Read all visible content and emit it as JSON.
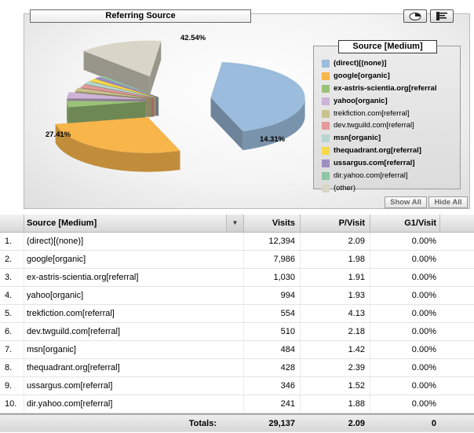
{
  "chart": {
    "title": "Referring Source",
    "legend_title": "Source [Medium]",
    "show_all_label": "Show All",
    "hide_all_label": "Hide All",
    "pct_labels": {
      "direct": "42.54%",
      "google": "27.41%",
      "other": "14.31%"
    }
  },
  "chart_data": {
    "type": "pie",
    "title": "Referring Source",
    "slices": [
      {
        "label": "(direct)[(none)]",
        "pct": 42.54,
        "color": "#9bbcdc",
        "bold": true
      },
      {
        "label": "google[organic]",
        "pct": 27.41,
        "color": "#f7b54a",
        "bold": true
      },
      {
        "label": "ex-astris-scientia.org[referral",
        "pct": 3.54,
        "color": "#9bc27a",
        "bold": true
      },
      {
        "label": "yahoo[organic]",
        "pct": 3.41,
        "color": "#cdb3d6",
        "bold": true
      },
      {
        "label": "trekfiction.com[referral]",
        "pct": 1.9,
        "color": "#c9c28f",
        "bold": false
      },
      {
        "label": "dev.twguild.com[referral]",
        "pct": 1.75,
        "color": "#e39a98",
        "bold": false
      },
      {
        "label": "msn[organic]",
        "pct": 1.66,
        "color": "#b7d5cf",
        "bold": true
      },
      {
        "label": "thequadrant.org[referral]",
        "pct": 1.47,
        "color": "#f5d94e",
        "bold": true
      },
      {
        "label": "ussargus.com[referral]",
        "pct": 1.19,
        "color": "#9e8ec2",
        "bold": true
      },
      {
        "label": "dir.yahoo.com[referral]",
        "pct": 0.83,
        "color": "#8fc7a4",
        "bold": false
      },
      {
        "label": "(other)",
        "pct": 14.31,
        "color": "#d9d5c7",
        "bold": false
      }
    ]
  },
  "table": {
    "headers": {
      "source": "Source [Medium]",
      "visits": "Visits",
      "pvisit": "P/Visit",
      "g1": "G1/Visit"
    },
    "rows": [
      {
        "n": "1.",
        "source": "(direct)[(none)]",
        "visits": "12,394",
        "pvisit": "2.09",
        "g1": "0.00%"
      },
      {
        "n": "2.",
        "source": "google[organic]",
        "visits": "7,986",
        "pvisit": "1.98",
        "g1": "0.00%"
      },
      {
        "n": "3.",
        "source": "ex-astris-scientia.org[referral]",
        "visits": "1,030",
        "pvisit": "1.91",
        "g1": "0.00%"
      },
      {
        "n": "4.",
        "source": "yahoo[organic]",
        "visits": "994",
        "pvisit": "1.93",
        "g1": "0.00%"
      },
      {
        "n": "5.",
        "source": "trekfiction.com[referral]",
        "visits": "554",
        "pvisit": "4.13",
        "g1": "0.00%"
      },
      {
        "n": "6.",
        "source": "dev.twguild.com[referral]",
        "visits": "510",
        "pvisit": "2.18",
        "g1": "0.00%"
      },
      {
        "n": "7.",
        "source": "msn[organic]",
        "visits": "484",
        "pvisit": "1.42",
        "g1": "0.00%"
      },
      {
        "n": "8.",
        "source": "thequadrant.org[referral]",
        "visits": "428",
        "pvisit": "2.39",
        "g1": "0.00%"
      },
      {
        "n": "9.",
        "source": "ussargus.com[referral]",
        "visits": "346",
        "pvisit": "1.52",
        "g1": "0.00%"
      },
      {
        "n": "10.",
        "source": "dir.yahoo.com[referral]",
        "visits": "241",
        "pvisit": "1.88",
        "g1": "0.00%"
      }
    ],
    "totals": {
      "label": "Totals:",
      "visits": "29,137",
      "pvisit": "2.09",
      "g1": "0"
    }
  },
  "icons": {
    "pie_button": "pie-chart-icon",
    "bar_button": "bar-chart-icon",
    "sort": "sort-desc-icon"
  }
}
